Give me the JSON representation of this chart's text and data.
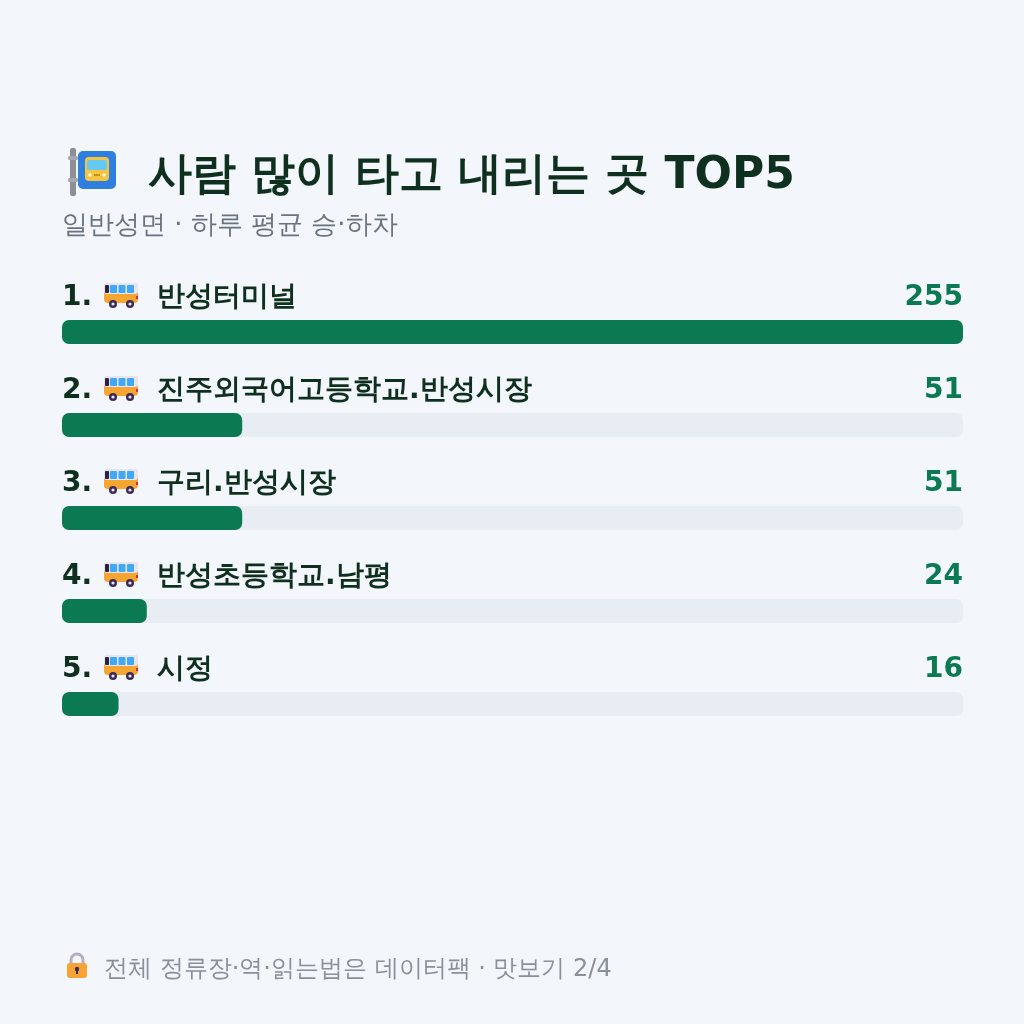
{
  "chart_data": {
    "type": "bar",
    "orientation": "horizontal",
    "title": "사람 많이 타고 내리는 곳 TOP5",
    "subtitle": "일반성면 · 하루 평균 승·하차",
    "categories": [
      "1. 반성터미널",
      "2. 진주외국어고등학교.반성시장",
      "3. 구리.반성시장",
      "4. 반성초등학교.남평",
      "5. 시정"
    ],
    "values": [
      255,
      51,
      51,
      24,
      16
    ],
    "color": "#0b7a53",
    "data_labels": true,
    "annotations": [
      "전체 정류장·역·읽는법은 데이터팩 · 맛보기 2/4"
    ]
  }
}
